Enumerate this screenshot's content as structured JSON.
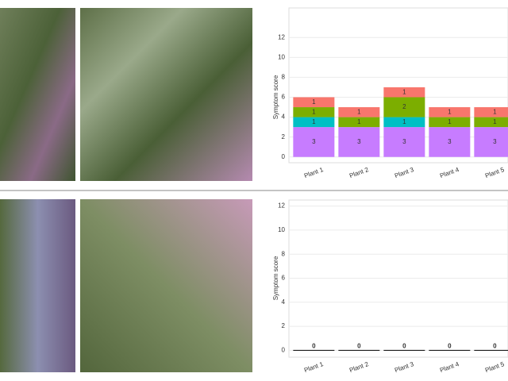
{
  "chart_data": [
    {
      "type": "bar",
      "stacked": true,
      "y_label": "Symptom score",
      "categories": [
        "Plant 1",
        "Plant 2",
        "Plant 3",
        "Plant 4",
        "Plant 5"
      ],
      "series": [
        {
          "color": "#c77cff",
          "values": [
            3,
            3,
            3,
            3,
            3
          ]
        },
        {
          "color": "#00bfc4",
          "values": [
            1,
            null,
            1,
            null,
            null
          ]
        },
        {
          "color": "#7cae00",
          "values": [
            1,
            1,
            2,
            1,
            1
          ]
        },
        {
          "color": "#f8766d",
          "values": [
            1,
            1,
            1,
            1,
            1
          ]
        }
      ],
      "ylim": [
        -0.5,
        12.5
      ],
      "yticks": [
        0,
        2,
        4,
        6,
        8,
        10,
        12
      ],
      "grid": true
    },
    {
      "type": "bar",
      "stacked": true,
      "y_label": "Symptom score",
      "categories": [
        "Plant 1",
        "Plant 2",
        "Plant 3",
        "Plant 4",
        "Plant 5"
      ],
      "series": [
        {
          "color": "#000000",
          "values": [
            0,
            0,
            0,
            0,
            0
          ]
        }
      ],
      "ylim": [
        -0.5,
        12.5
      ],
      "yticks": [
        0,
        2,
        4,
        6,
        8,
        10,
        12
      ],
      "grid": true
    }
  ]
}
